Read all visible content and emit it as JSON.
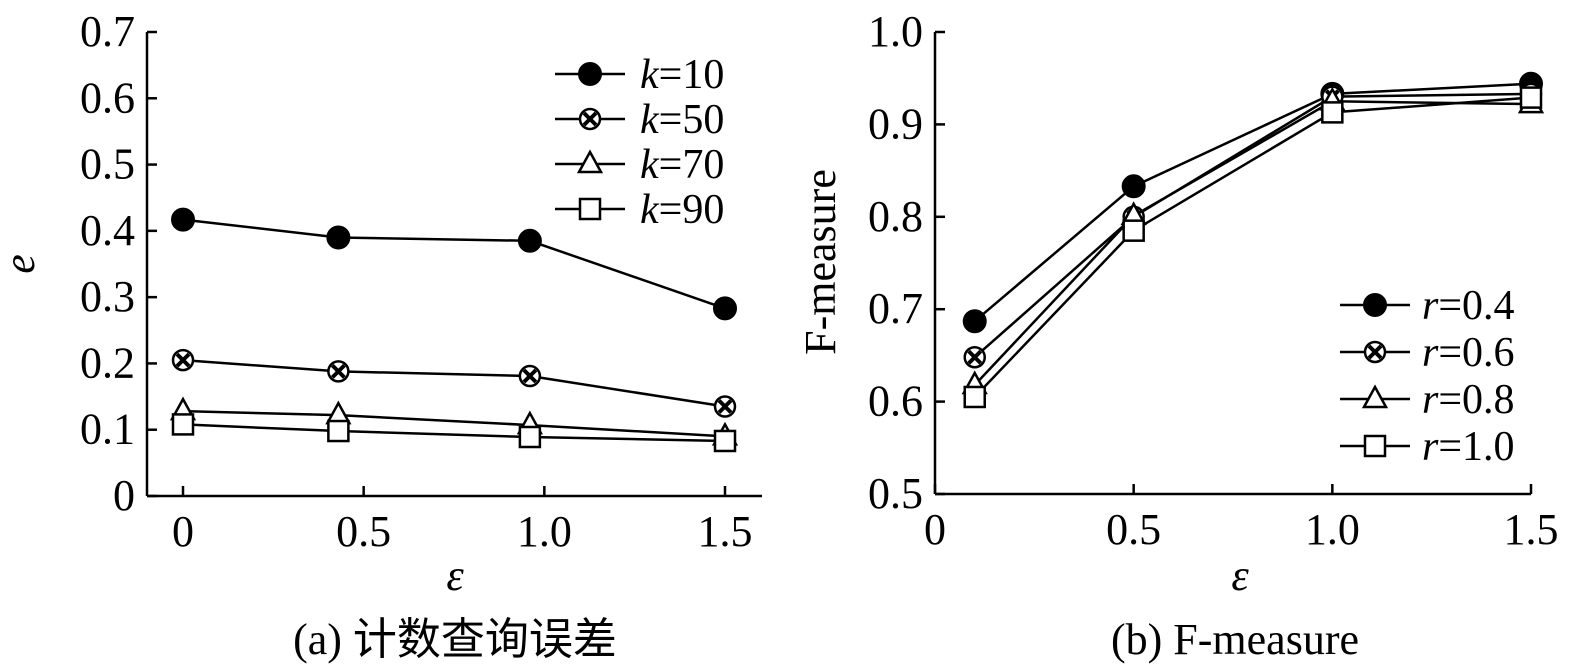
{
  "chart_data": [
    {
      "type": "line",
      "title": "",
      "caption": "(a) 计数查询误差",
      "xlabel": "ε",
      "ylabel": "e",
      "xlim": [
        -0.1,
        1.5
      ],
      "ylim": [
        0,
        0.7
      ],
      "xticks": [
        0,
        0.5,
        1.0,
        1.5
      ],
      "xtick_labels": [
        "0",
        "0.5",
        "1.0",
        "1.5"
      ],
      "yticks": [
        0,
        0.1,
        0.2,
        0.3,
        0.4,
        0.5,
        0.6,
        0.7
      ],
      "ytick_labels": [
        "0",
        "0.1",
        "0.2",
        "0.3",
        "0.4",
        "0.5",
        "0.6",
        "0.7"
      ],
      "x": [
        0,
        0.43,
        0.96,
        1.5
      ],
      "legend_position": "top-right",
      "series": [
        {
          "name": "k=10",
          "var": "k",
          "eq": "=10",
          "marker": "filled-circle",
          "values": [
            0.417,
            0.39,
            0.385,
            0.283
          ]
        },
        {
          "name": "k=50",
          "var": "k",
          "eq": "=50",
          "marker": "x-circle",
          "values": [
            0.205,
            0.188,
            0.181,
            0.135
          ]
        },
        {
          "name": "k=70",
          "var": "k",
          "eq": "=70",
          "marker": "triangle",
          "values": [
            0.128,
            0.122,
            0.107,
            0.09
          ]
        },
        {
          "name": "k=90",
          "var": "k",
          "eq": "=90",
          "marker": "square",
          "values": [
            0.108,
            0.098,
            0.089,
            0.083
          ]
        }
      ]
    },
    {
      "type": "line",
      "title": "",
      "caption": "(b) F-measure",
      "xlabel": "ε",
      "ylabel": "F-measure",
      "xlim": [
        0,
        1.5
      ],
      "ylim": [
        0.5,
        1.0
      ],
      "xticks": [
        0,
        0.5,
        1.0,
        1.5
      ],
      "xtick_labels": [
        "0",
        "0.5",
        "1.0",
        "1.5"
      ],
      "yticks": [
        0.5,
        0.6,
        0.7,
        0.8,
        0.9,
        1.0
      ],
      "ytick_labels": [
        "0.5",
        "0.6",
        "0.7",
        "0.8",
        "0.9",
        "1.0"
      ],
      "x": [
        0.1,
        0.5,
        1.0,
        1.5
      ],
      "legend_position": "bottom-right",
      "series": [
        {
          "name": "r=0.4",
          "var": "r",
          "eq": "=0.4",
          "marker": "filled-circle",
          "values": [
            0.687,
            0.833,
            0.933,
            0.944
          ]
        },
        {
          "name": "r=0.6",
          "var": "r",
          "eq": "=0.6",
          "marker": "x-circle",
          "values": [
            0.648,
            0.8,
            0.93,
            0.933
          ]
        },
        {
          "name": "r=0.8",
          "var": "r",
          "eq": "=0.8",
          "marker": "triangle",
          "values": [
            0.618,
            0.801,
            0.925,
            0.922
          ]
        },
        {
          "name": "r=1.0",
          "var": "r",
          "eq": "=1.0",
          "marker": "square",
          "values": [
            0.605,
            0.785,
            0.913,
            0.929
          ]
        }
      ]
    }
  ]
}
